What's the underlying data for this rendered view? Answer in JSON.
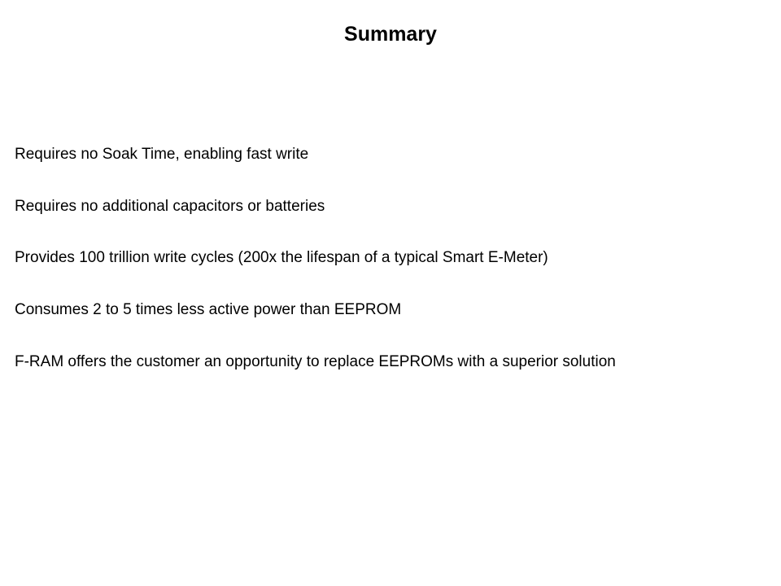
{
  "slide": {
    "title": "Summary",
    "title_fontsize": 25,
    "title_fontweight": "bold",
    "body_fontsize": 19,
    "background_color": "#ffffff",
    "text_color": "#000000",
    "bullets": [
      "Requires no Soak Time, enabling fast write",
      "Requires no additional capacitors or batteries",
      "Provides 100 trillion write cycles (200x the lifespan of a typical Smart E-Meter)",
      "Consumes 2 to 5 times less active power than EEPROM",
      "F-RAM offers the customer an opportunity to replace EEPROMs with a superior solution"
    ]
  }
}
